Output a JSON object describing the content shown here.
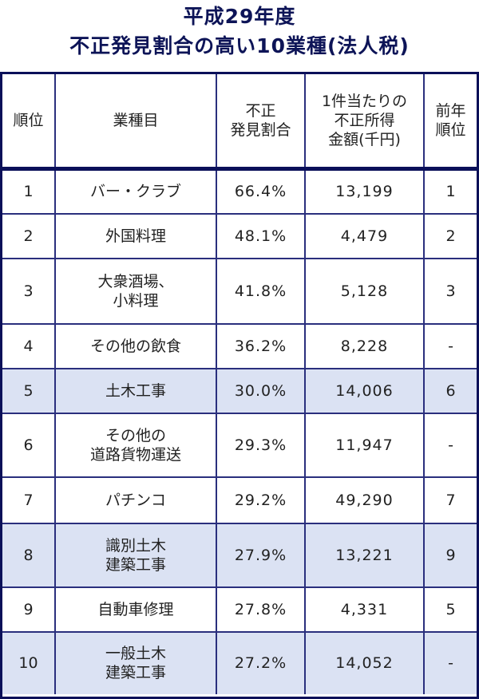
{
  "title": {
    "line1": "平成29年度",
    "line2": "不正発見割合の高い10業種(法人税)"
  },
  "colors": {
    "title": "#0d1457",
    "border_outer": "#0b1059",
    "border_inner": "#2a2f7d",
    "highlight_row": "#dbe2f3"
  },
  "table": {
    "headers": {
      "rank": "順位",
      "industry": "業種目",
      "fraud_ratio": "不正\n発見割合",
      "fraud_income": "1件当たりの\n不正所得\n金額(千円)",
      "prev_rank": "前年\n順位"
    },
    "rows": [
      {
        "rank": "1",
        "industry": "バー・クラブ",
        "ratio": "66.4%",
        "income": "13,199",
        "prev": "1",
        "highlight": false
      },
      {
        "rank": "2",
        "industry": "外国料理",
        "ratio": "48.1%",
        "income": "4,479",
        "prev": "2",
        "highlight": false
      },
      {
        "rank": "3",
        "industry": "大衆酒場、\n小料理",
        "ratio": "41.8%",
        "income": "5,128",
        "prev": "3",
        "highlight": false
      },
      {
        "rank": "4",
        "industry": "その他の飲食",
        "ratio": "36.2%",
        "income": "8,228",
        "prev": "-",
        "highlight": false
      },
      {
        "rank": "5",
        "industry": "土木工事",
        "ratio": "30.0%",
        "income": "14,006",
        "prev": "6",
        "highlight": true
      },
      {
        "rank": "6",
        "industry": "その他の\n道路貨物運送",
        "ratio": "29.3%",
        "income": "11,947",
        "prev": "-",
        "highlight": false
      },
      {
        "rank": "7",
        "industry": "パチンコ",
        "ratio": "29.2%",
        "income": "49,290",
        "prev": "7",
        "highlight": false
      },
      {
        "rank": "8",
        "industry": "識別土木\n建築工事",
        "ratio": "27.9%",
        "income": "13,221",
        "prev": "9",
        "highlight": true
      },
      {
        "rank": "9",
        "industry": "自動車修理",
        "ratio": "27.8%",
        "income": "4,331",
        "prev": "5",
        "highlight": false
      },
      {
        "rank": "10",
        "industry": "一般土木\n建築工事",
        "ratio": "27.2%",
        "income": "14,052",
        "prev": "-",
        "highlight": true
      }
    ]
  }
}
